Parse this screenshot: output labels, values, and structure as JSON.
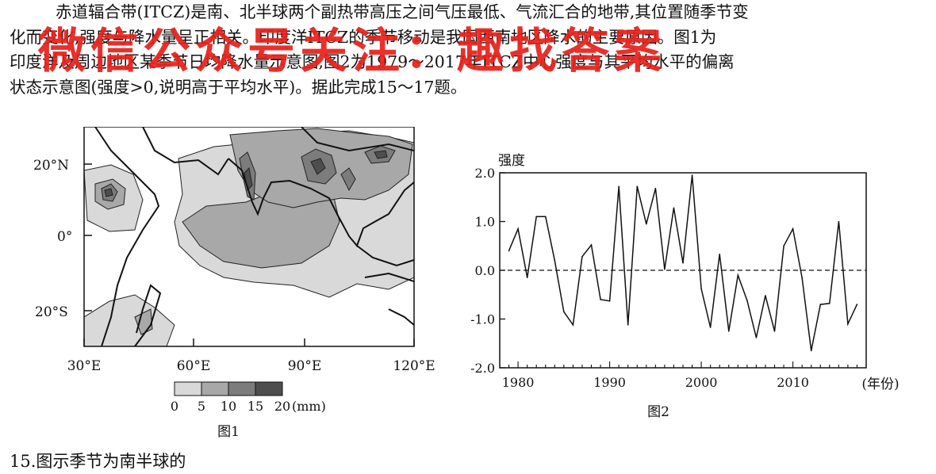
{
  "passage": {
    "lines": [
      "赤道辐合带(ITCZ)是南、北半球两个副热带高压之间气压最低、气流汇合的地带,其位置随季节变",
      "化而变化,强度与降水量呈正相关。印度洋ITCZ的季节移动是我国西南地区降水的主要原因。图1为",
      "印度洋及周边地区某季节日均降水量示意图,图2为1979～2017年ITCZ中心强度与其平均水平的偏离",
      "状态示意图(强度>0,说明高于平均水平)。据此完成15～17题。"
    ]
  },
  "watermark": "微信公众号关注：趣找答案",
  "figure1": {
    "caption": "图1",
    "lat_labels": [
      "20°N",
      "0°",
      "20°S"
    ],
    "lon_labels": [
      "30°E",
      "60°E",
      "90°E",
      "120°E"
    ],
    "legend_values": [
      "0",
      "5",
      "10",
      "15",
      "20"
    ],
    "legend_unit": "(mm)",
    "legend_colors": [
      "#d9d9d9",
      "#a8a8a8",
      "#7c7c7c",
      "#4e4e4e",
      "#262626"
    ]
  },
  "figure2": {
    "caption": "图2"
  },
  "chart_data": {
    "type": "line",
    "ylabel": "强度",
    "xlabel": "(年份)",
    "xlim": [
      1978,
      2018
    ],
    "ylim": [
      -2.0,
      2.0
    ],
    "x_ticks": [
      1980,
      1990,
      2000,
      2010
    ],
    "y_ticks": [
      "2.0",
      "1.0",
      "0.0",
      "-1.0",
      "-2.0"
    ],
    "reference_line": 0.0,
    "series": [
      {
        "x": [
          1979,
          1980,
          1981,
          1982,
          1983,
          1984,
          1985,
          1986,
          1987,
          1988,
          1989,
          1990,
          1991,
          1992,
          1993,
          1994,
          1995,
          1996,
          1997,
          1998,
          1999,
          2000,
          2001,
          2002,
          2003,
          2004,
          2005,
          2006,
          2007,
          2008,
          2009,
          2010,
          2011,
          2012,
          2013,
          2014,
          2015,
          2016,
          2017
        ],
        "values": [
          0.4,
          0.85,
          -0.15,
          1.1,
          1.1,
          0.2,
          -0.85,
          -1.12,
          0.28,
          0.52,
          -0.6,
          -0.63,
          1.72,
          -1.12,
          1.72,
          0.95,
          1.68,
          0.02,
          1.28,
          0.15,
          1.95,
          -0.38,
          -1.17,
          0.33,
          -1.25,
          -0.1,
          -0.62,
          -1.38,
          -0.52,
          -1.25,
          0.5,
          0.85,
          -0.15,
          -1.65,
          -0.7,
          -0.68,
          1.0,
          -1.1,
          -0.7
        ]
      }
    ]
  },
  "question15": "15.图示季节为南半球的"
}
